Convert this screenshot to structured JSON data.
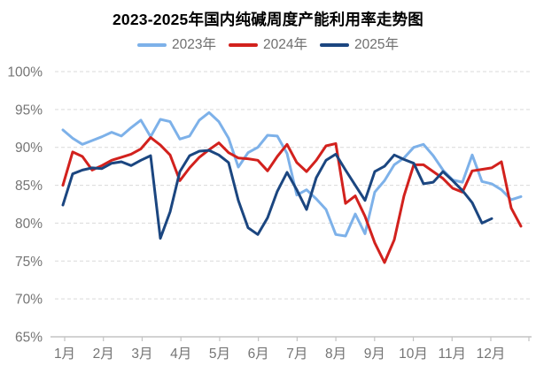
{
  "chart_data": {
    "type": "line",
    "title": "2023-2025年国内纯碱周度产能利用率走势图",
    "subtitle": "",
    "legend_position": "top",
    "grid": "horizontal dashed gridlines on, vertical off",
    "x_axis": {
      "label": "",
      "tick_labels": [
        "1月",
        "2月",
        "3月",
        "4月",
        "5月",
        "6月",
        "7月",
        "8月",
        "9月",
        "10月",
        "11月",
        "12月"
      ],
      "points_per_year": 48,
      "unit": "weekly capacity utilization, percent"
    },
    "y_axis": {
      "label": "",
      "min": 65,
      "max": 100,
      "step": 5,
      "tick_labels": [
        "100%",
        "95%",
        "90%",
        "85%",
        "80%",
        "75%",
        "70%",
        "65%"
      ]
    },
    "series": [
      {
        "name": "2023年",
        "color": "#7DB1E9",
        "values": [
          92.3,
          91.2,
          90.4,
          90.9,
          91.4,
          92.0,
          91.5,
          92.6,
          93.6,
          91.4,
          93.7,
          93.4,
          91.1,
          91.5,
          93.6,
          94.6,
          93.4,
          91.2,
          87.4,
          89.3,
          90.0,
          91.6,
          91.5,
          89.2,
          83.7,
          84.4,
          83.2,
          81.8,
          78.5,
          78.3,
          81.2,
          78.6,
          84.1,
          85.6,
          87.7,
          88.6,
          90.0,
          90.4,
          88.9,
          87.0,
          85.7,
          85.4,
          89.0,
          85.5,
          85.2,
          84.4,
          83.1,
          83.5
        ]
      },
      {
        "name": "2024年",
        "color": "#D2211D",
        "values": [
          85.0,
          89.4,
          88.8,
          87.0,
          87.6,
          88.3,
          88.7,
          89.1,
          89.8,
          91.3,
          90.3,
          89.0,
          85.6,
          87.3,
          88.7,
          89.7,
          90.6,
          89.3,
          88.6,
          88.5,
          88.3,
          86.9,
          88.8,
          90.4,
          88.0,
          86.8,
          88.3,
          90.2,
          90.5,
          82.6,
          83.6,
          80.9,
          77.4,
          74.8,
          77.8,
          83.6,
          87.7,
          87.7,
          86.8,
          85.9,
          84.6,
          84.1,
          86.9,
          87.1,
          87.3,
          88.1,
          82.0,
          79.6
        ]
      },
      {
        "name": "2025年",
        "color": "#1B4680",
        "values": [
          82.4,
          86.5,
          87.0,
          87.3,
          87.2,
          87.9,
          88.1,
          87.6,
          88.3,
          88.9,
          78.0,
          81.5,
          86.8,
          88.9,
          89.5,
          89.6,
          89.0,
          88.0,
          83.0,
          79.4,
          78.5,
          80.7,
          84.2,
          86.7,
          84.4,
          81.8,
          86.0,
          88.3,
          89.1,
          87.0,
          85.0,
          83.0,
          86.8,
          87.5,
          89.0,
          88.4,
          87.9,
          85.2,
          85.4,
          86.8,
          85.6,
          84.3,
          82.7,
          80.0,
          80.6
        ]
      }
    ],
    "style": {
      "grid_color": "#d9d9d9",
      "axis_line_color": "#c3c3c3",
      "axis_label_color": "#757575",
      "title_color": "#000000",
      "line_width": 3
    }
  }
}
